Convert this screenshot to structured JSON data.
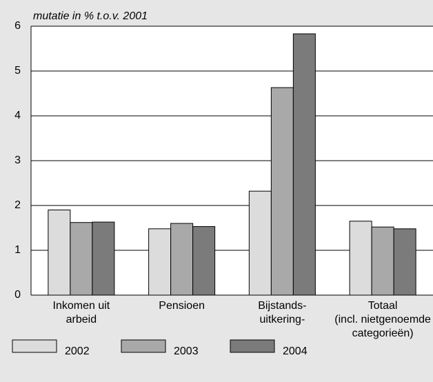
{
  "chart_data": {
    "type": "bar",
    "y_label": "mutatie in % t.o.v. 2001",
    "categories": [
      [
        "Inkomen uit",
        "arbeid"
      ],
      [
        "Pensioen"
      ],
      [
        "Bijstands-",
        "uitkering-"
      ],
      [
        "Totaal",
        "(incl. nietgenoemde",
        "categorieën)"
      ]
    ],
    "series": [
      {
        "name": "2002",
        "color": "#dcdcdc",
        "values": [
          1.9,
          1.48,
          2.32,
          1.65
        ]
      },
      {
        "name": "2003",
        "color": "#a9a9a9",
        "values": [
          1.62,
          1.6,
          4.63,
          1.52
        ]
      },
      {
        "name": "2004",
        "color": "#7b7b7b",
        "values": [
          1.63,
          1.53,
          5.83,
          1.48
        ]
      }
    ],
    "ylim": [
      0,
      6
    ],
    "yticks": [
      0,
      1,
      2,
      3,
      4,
      5,
      6
    ],
    "grid": true,
    "legend": "bottom"
  }
}
